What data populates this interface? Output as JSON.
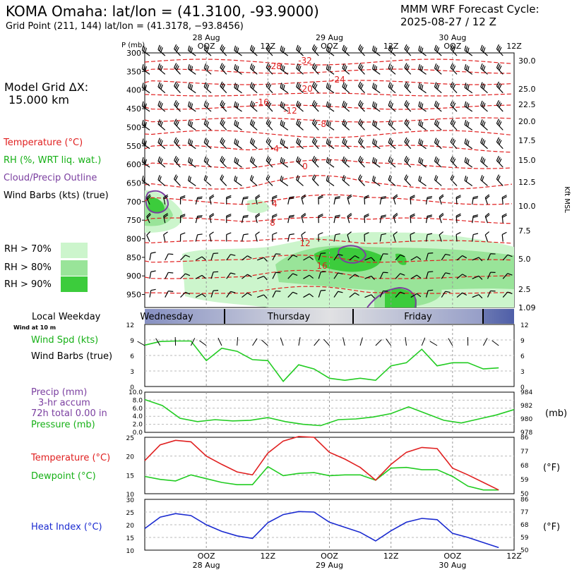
{
  "header": {
    "title": "KOMA Omaha:  lat/lon = (41.3100, -93.9000)",
    "grid_point": "Grid Point (211, 144) lat/lon = (41.3178, −93.8456)",
    "cycle_title": "MMM WRF Forecast Cycle:",
    "cycle_time": "2025-08-27 / 12  Z"
  },
  "left_panel": {
    "model_grid_label": "Model Grid ΔX:",
    "model_grid_value": "15.000 km",
    "legend": [
      {
        "text": "Temperature (°C)",
        "color": "#e02020"
      },
      {
        "text": "RH (%, WRT liq. wat.)",
        "color": "#16b016"
      },
      {
        "text": "Cloud/Precip Outline",
        "color": "#7b3fa0"
      },
      {
        "text": "Wind Barbs (kts) (true)",
        "color": "#000000"
      }
    ],
    "rh_legend": [
      {
        "text": "RH > 70%",
        "color": "#ccf5cc"
      },
      {
        "text": "RH > 80%",
        "color": "#99e499"
      },
      {
        "text": "RH > 90%",
        "color": "#3ccc3c"
      }
    ]
  },
  "time_axis": {
    "top_dates": [
      "28 Aug",
      "29 Aug",
      "30 Aug"
    ],
    "ticks": [
      "OOZ",
      "12Z",
      "OOZ",
      "12Z",
      "OOZ",
      "12Z"
    ],
    "bottom_ticks": [
      "OOZ",
      "12Z",
      "OOZ",
      "12Z",
      "OOZ",
      "12Z"
    ],
    "bottom_dates": [
      "28 Aug",
      "29 Aug",
      "30 Aug"
    ]
  },
  "chart_data": [
    {
      "type": "cross-section",
      "ylabel": "P (mb)",
      "ylabel_right": "Kft MSL",
      "pressure_ticks": [
        300,
        350,
        400,
        450,
        500,
        550,
        600,
        650,
        700,
        750,
        800,
        850,
        900,
        950
      ],
      "height_ticks": [
        "30.0",
        "25.0",
        "22.5",
        "20.0",
        "17.5",
        "15.0",
        "12.5",
        "10.0",
        "7.5",
        "5.0",
        "2.5",
        "1.09"
      ],
      "temperature_labels": [
        "-32",
        "-28",
        "-24",
        "-20",
        "-16",
        "-12",
        "-8",
        "-4",
        "0",
        "4",
        "8",
        "12",
        "16"
      ]
    },
    {
      "type": "band",
      "title": "Local Weekday",
      "labels": [
        "Wednesday",
        "Thursday",
        "Friday"
      ]
    },
    {
      "type": "line",
      "title": "Wind Spd (kts)",
      "subtitle": "Wind Barbs (true)",
      "note": "Wind at 10 m",
      "ylim": [
        0,
        12
      ],
      "yticks": [
        0,
        3,
        6,
        9,
        12
      ],
      "series": [
        {
          "name": "Wind Spd (kts)",
          "color": "#22cc22",
          "values": [
            8.0,
            8.7,
            8.8,
            8.8,
            5.0,
            7.4,
            6.8,
            5.2,
            5.0,
            1.0,
            4.2,
            3.4,
            1.6,
            1.2,
            1.6,
            1.2,
            4.0,
            4.6,
            7.2,
            4.0,
            4.6,
            4.6,
            3.4,
            3.6
          ]
        }
      ]
    },
    {
      "type": "line",
      "title": "Precip (mm)",
      "subtitle": "3-hr accum",
      "total_text": "72h total 0.00 in",
      "pressure_title": "Pressure (mb)",
      "right_unit": "(mb)",
      "ylim": [
        0,
        10
      ],
      "yticks": [
        "0.0",
        "2.0",
        "4.0",
        "6.0",
        "8.0",
        "10.0"
      ],
      "yticks_right": [
        "978",
        "980",
        "982",
        "984"
      ],
      "series": [
        {
          "name": "Pressure (mb)",
          "color": "#22cc22",
          "values": [
            982.9,
            982.0,
            980.1,
            979.6,
            979.9,
            979.7,
            979.8,
            980.2,
            979.6,
            979.2,
            979.0,
            979.9,
            980.0,
            980.3,
            980.8,
            981.8,
            980.8,
            979.8,
            979.4,
            980.0,
            980.6,
            981.4
          ]
        }
      ]
    },
    {
      "type": "line",
      "title": "Temperature (°C)",
      "subtitle": "Dewpoint (°C)",
      "right_unit": "(°F)",
      "ylim": [
        10,
        25
      ],
      "yticks": [
        10,
        15,
        20,
        25
      ],
      "yticks_right": [
        50,
        59,
        68,
        77,
        86
      ],
      "series": [
        {
          "name": "Temperature (°C)",
          "color": "#e02020",
          "values": [
            18.8,
            23.0,
            24.2,
            23.8,
            20.0,
            17.8,
            15.8,
            15.0,
            20.8,
            24.0,
            25.2,
            25.0,
            21.0,
            19.2,
            17.0,
            13.6,
            17.8,
            21.0,
            22.3,
            22.0,
            16.8,
            15.0,
            13.0,
            11.0
          ]
        },
        {
          "name": "Dewpoint (°C)",
          "color": "#22cc22",
          "values": [
            14.6,
            13.8,
            13.4,
            15.0,
            14.0,
            13.0,
            12.4,
            12.4,
            17.2,
            14.8,
            15.4,
            15.6,
            14.8,
            15.0,
            15.0,
            13.6,
            16.8,
            17.0,
            16.4,
            16.4,
            14.6,
            12.0,
            11.0,
            11.0
          ]
        }
      ]
    },
    {
      "type": "line",
      "title": "Heat Index (°C)",
      "right_unit": "(°F)",
      "ylim": [
        10,
        30
      ],
      "yticks": [
        10,
        15,
        20,
        25,
        30
      ],
      "yticks_right": [
        50,
        59,
        68,
        77,
        86
      ],
      "series": [
        {
          "name": "Heat Index (°C)",
          "color": "#1a2ad0",
          "values": [
            18.5,
            23.0,
            24.4,
            23.6,
            20.0,
            17.4,
            15.6,
            14.6,
            20.8,
            24.0,
            25.2,
            25.0,
            21.0,
            19.0,
            17.0,
            13.6,
            17.6,
            21.0,
            22.5,
            22.0,
            16.6,
            15.0,
            13.0,
            11.0
          ]
        }
      ]
    }
  ]
}
